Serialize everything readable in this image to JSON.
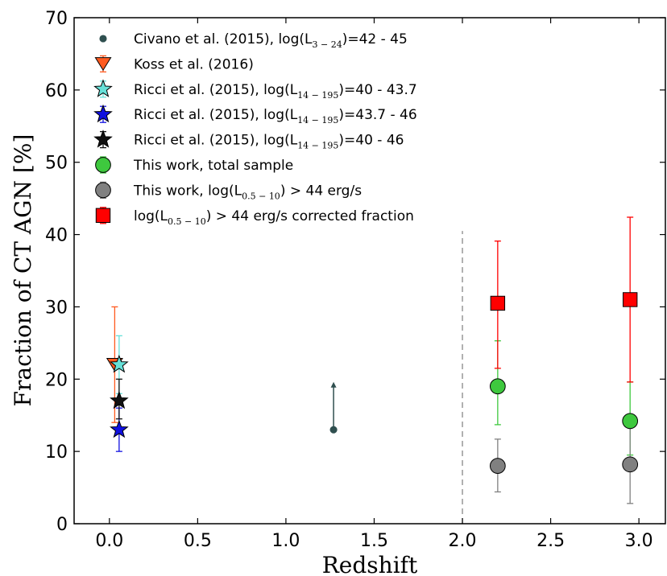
{
  "chart_data": {
    "type": "scatter",
    "xlabel": "Redshift",
    "ylabel": "Fraction of CT AGN [%]",
    "xlim": [
      -0.2,
      3.15
    ],
    "ylim": [
      0,
      70
    ],
    "x_ticks": [
      "0.0",
      "0.5",
      "1.0",
      "1.5",
      "2.0",
      "2.5",
      "3.0"
    ],
    "y_ticks": [
      "0",
      "10",
      "20",
      "30",
      "40",
      "50",
      "60",
      "70"
    ],
    "grid": false,
    "legend_position": "top-left",
    "reference_line": {
      "x": 2.0,
      "style": "dashed",
      "color": "#888888"
    },
    "series": [
      {
        "name_main": "Civano et al. (2015), log(L",
        "name_sub": "3 − 24",
        "name_tail": ")=42 - 45",
        "marker": "dot",
        "color": "#2f4f4f",
        "points": [
          {
            "x": 1.27,
            "y": 13,
            "lower_limit_arrow_to": 19.5
          }
        ]
      },
      {
        "name_main": "Koss et al. (2016)",
        "name_sub": "",
        "name_tail": "",
        "marker": "triangle-down",
        "color": "#ff5a1f",
        "points": [
          {
            "x": 0.03,
            "y": 22,
            "err_low": 14,
            "err_high": 30
          }
        ]
      },
      {
        "name_main": "Ricci et al. (2015), log(L",
        "name_sub": "14 − 195",
        "name_tail": ")=40 - 43.7",
        "marker": "star",
        "color": "#66e0d8",
        "points": [
          {
            "x": 0.055,
            "y": 22,
            "err_low": 18,
            "err_high": 26
          }
        ]
      },
      {
        "name_main": "Ricci et al. (2015), log(L",
        "name_sub": "14 − 195",
        "name_tail": ")=43.7 - 46",
        "marker": "star",
        "color": "#1010e0",
        "points": [
          {
            "x": 0.055,
            "y": 13,
            "err_low": 10,
            "err_high": 16
          }
        ]
      },
      {
        "name_main": "Ricci et al. (2015), log(L",
        "name_sub": "14 − 195",
        "name_tail": ")=40 - 46",
        "marker": "star",
        "color": "#111111",
        "points": [
          {
            "x": 0.055,
            "y": 17,
            "err_low": 14.5,
            "err_high": 20
          }
        ]
      },
      {
        "name_main": "This work, total sample",
        "name_sub": "",
        "name_tail": "",
        "marker": "circle",
        "color": "#3ec83e",
        "points": [
          {
            "x": 2.2,
            "y": 19,
            "err_low": 13.7,
            "err_high": 25.3
          },
          {
            "x": 2.95,
            "y": 14.2,
            "err_low": 9.5,
            "err_high": 19.6
          }
        ]
      },
      {
        "name_main": "This work, log(L",
        "name_sub": "0.5 − 10",
        "name_tail": ") > 44 erg/s",
        "marker": "circle",
        "color": "#808080",
        "points": [
          {
            "x": 2.2,
            "y": 8,
            "err_low": 4.4,
            "err_high": 11.7
          },
          {
            "x": 2.95,
            "y": 8.2,
            "err_low": 2.8,
            "err_high": 13.5
          }
        ]
      },
      {
        "name_main": "log(L",
        "name_sub": "0.5 − 10",
        "name_tail": ") > 44 erg/s corrected fraction",
        "marker": "square",
        "color": "#ff0000",
        "points": [
          {
            "x": 2.2,
            "y": 30.5,
            "err_low": 21.5,
            "err_high": 39.1
          },
          {
            "x": 2.95,
            "y": 31,
            "err_low": 19.6,
            "err_high": 42.4
          }
        ]
      }
    ]
  }
}
